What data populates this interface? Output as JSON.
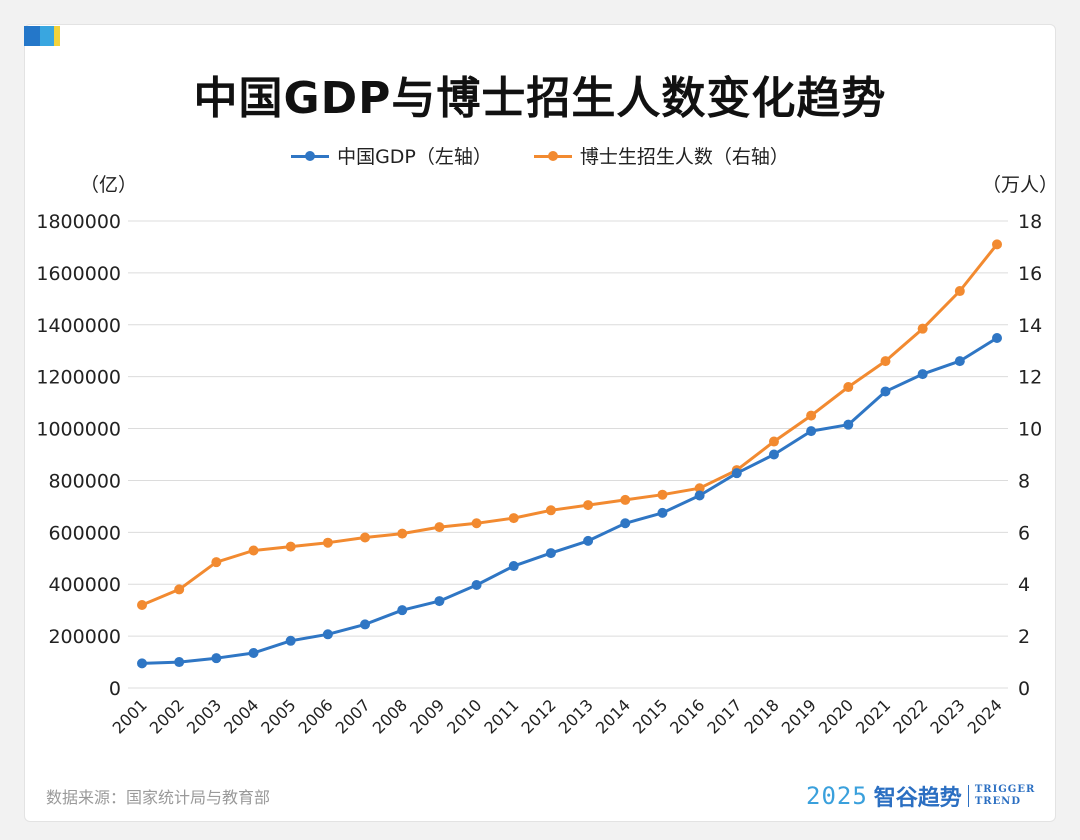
{
  "title": "中国GDP与博士招生人数变化趋势",
  "units": {
    "left": "（亿）",
    "right": "（万人）"
  },
  "source": "数据来源：国家统计局与教育部",
  "logo": {
    "year": "2025",
    "name": "智谷趋势",
    "en_line1": "TRIGGER",
    "en_line2": "TREND"
  },
  "colors": {
    "gdp": "#2f76c4",
    "phd": "#f28a30",
    "grid": "#dcdcdc",
    "brand_blue": "#2477c9",
    "brand_light": "#39a6e0",
    "brand_yellow": "#f3d33c"
  },
  "chart_data": {
    "type": "line",
    "title": "中国GDP与博士招生人数变化趋势",
    "categories": [
      "2001",
      "2002",
      "2003",
      "2004",
      "2005",
      "2006",
      "2007",
      "2008",
      "2009",
      "2010",
      "2011",
      "2012",
      "2013",
      "2014",
      "2015",
      "2016",
      "2017",
      "2018",
      "2019",
      "2020",
      "2021",
      "2022",
      "2023",
      "2024"
    ],
    "series": [
      {
        "name": "中国GDP（左轴）",
        "axis": "left",
        "values": [
          95000,
          100000,
          115000,
          135000,
          182000,
          207000,
          245000,
          300000,
          335000,
          397000,
          470000,
          520000,
          567000,
          635000,
          675000,
          742000,
          828000,
          900000,
          990000,
          1015000,
          1143000,
          1210000,
          1260000,
          1349000
        ]
      },
      {
        "name": "博士生招生人数（右轴）",
        "axis": "right",
        "values": [
          3.2,
          3.8,
          4.85,
          5.3,
          5.45,
          5.6,
          5.8,
          5.95,
          6.2,
          6.35,
          6.55,
          6.85,
          7.05,
          7.25,
          7.45,
          7.7,
          8.4,
          9.5,
          10.5,
          11.6,
          12.6,
          13.85,
          15.3,
          17.1
        ]
      }
    ],
    "y_left": {
      "min": 0,
      "max": 1800000,
      "ticks": [
        "0",
        "200000",
        "400000",
        "600000",
        "800000",
        "1000000",
        "1200000",
        "1400000",
        "1600000",
        "1800000"
      ]
    },
    "y_right": {
      "min": 0,
      "max": 18,
      "ticks": [
        "0",
        "2",
        "4",
        "6",
        "8",
        "10",
        "12",
        "14",
        "16",
        "18"
      ]
    },
    "grid": true,
    "legend": "top-center"
  }
}
